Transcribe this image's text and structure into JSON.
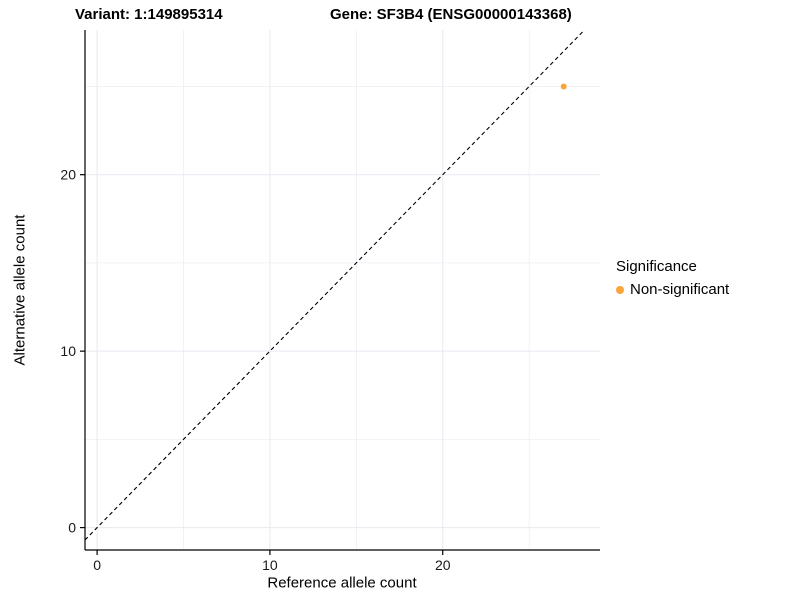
{
  "chart_data": {
    "type": "scatter",
    "title_left": "Variant: 1:149895314",
    "title_right": "Gene: SF3B4 (ENSG00000143368)",
    "xlabel": "Reference allele count",
    "ylabel": "Alternative allele count",
    "xlim": [
      -0.7,
      29.1
    ],
    "ylim": [
      -1.27,
      28.2
    ],
    "xticks": [
      0,
      10,
      20
    ],
    "yticks": [
      0,
      10,
      20
    ],
    "minor_ticks_x": [
      5,
      15,
      25
    ],
    "minor_ticks_y": [
      5,
      15,
      25
    ],
    "grid": true,
    "gridline_color": "#e8eaf0",
    "axis_line_color": "#000000",
    "tick_label_color": "#1a1a1a",
    "identity_line": {
      "style": "dashed",
      "slope": 1,
      "intercept": 0,
      "color": "#000000"
    },
    "series": [
      {
        "name": "Non-significant",
        "color": "#FAA43A",
        "points": [
          {
            "x": 27,
            "y": 25
          }
        ]
      }
    ],
    "legend": {
      "position": "right",
      "title": "Significance",
      "entries": [
        {
          "label": "Non-significant",
          "color": "#FAA43A"
        }
      ]
    }
  }
}
